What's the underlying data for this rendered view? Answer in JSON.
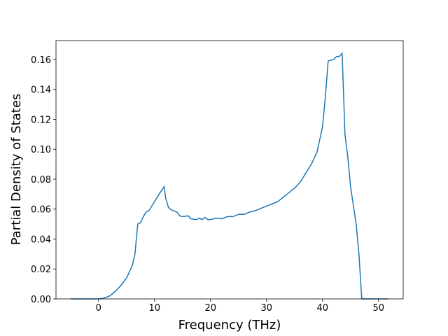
{
  "chart_data": {
    "type": "line",
    "xlabel": "Frequency (THz)",
    "ylabel": "Partial Density of States",
    "x": [
      -5,
      -2,
      0,
      1,
      2,
      3,
      4,
      5,
      6,
      6.5,
      7,
      7.5,
      8,
      8.5,
      9,
      10,
      11,
      11.7,
      12,
      12.5,
      13,
      14,
      14.5,
      15,
      16,
      16.5,
      17.5,
      18,
      18.5,
      19,
      19.5,
      20,
      21,
      22,
      23,
      24,
      25,
      26,
      27,
      28,
      29,
      30,
      31,
      32,
      33,
      34,
      35,
      36,
      37,
      38,
      39,
      40,
      40.5,
      41,
      42,
      42.5,
      43,
      43.5,
      44,
      44.5,
      45,
      46,
      46.5,
      47,
      48,
      51.7
    ],
    "series": [
      {
        "name": "PDOS",
        "color": "#1f77b4",
        "values": [
          0,
          0,
          0,
          0.0005,
          0.002,
          0.005,
          0.009,
          0.014,
          0.022,
          0.03,
          0.05,
          0.051,
          0.055,
          0.058,
          0.059,
          0.065,
          0.071,
          0.075,
          0.067,
          0.061,
          0.0595,
          0.058,
          0.0555,
          0.055,
          0.0555,
          0.0535,
          0.053,
          0.054,
          0.053,
          0.0545,
          0.053,
          0.053,
          0.054,
          0.0535,
          0.055,
          0.055,
          0.0565,
          0.0565,
          0.058,
          0.059,
          0.0605,
          0.062,
          0.0635,
          0.065,
          0.068,
          0.071,
          0.074,
          0.078,
          0.084,
          0.09,
          0.098,
          0.115,
          0.135,
          0.159,
          0.16,
          0.162,
          0.162,
          0.164,
          0.11,
          0.095,
          0.075,
          0.05,
          0.03,
          0,
          0,
          0
        ]
      }
    ],
    "xlim": [
      -7.6,
      54.4
    ],
    "ylim": [
      0,
      0.1726
    ],
    "xticks": [
      0,
      10,
      20,
      30,
      40,
      50
    ],
    "yticks": [
      {
        "value": 0,
        "label": "0.00"
      },
      {
        "value": 0.02,
        "label": "0.02"
      },
      {
        "value": 0.04,
        "label": "0.04"
      },
      {
        "value": 0.06,
        "label": "0.06"
      },
      {
        "value": 0.08,
        "label": "0.08"
      },
      {
        "value": 0.1,
        "label": "0.10"
      },
      {
        "value": 0.12,
        "label": "0.12"
      },
      {
        "value": 0.14,
        "label": "0.14"
      },
      {
        "value": 0.16,
        "label": "0.16"
      }
    ]
  }
}
